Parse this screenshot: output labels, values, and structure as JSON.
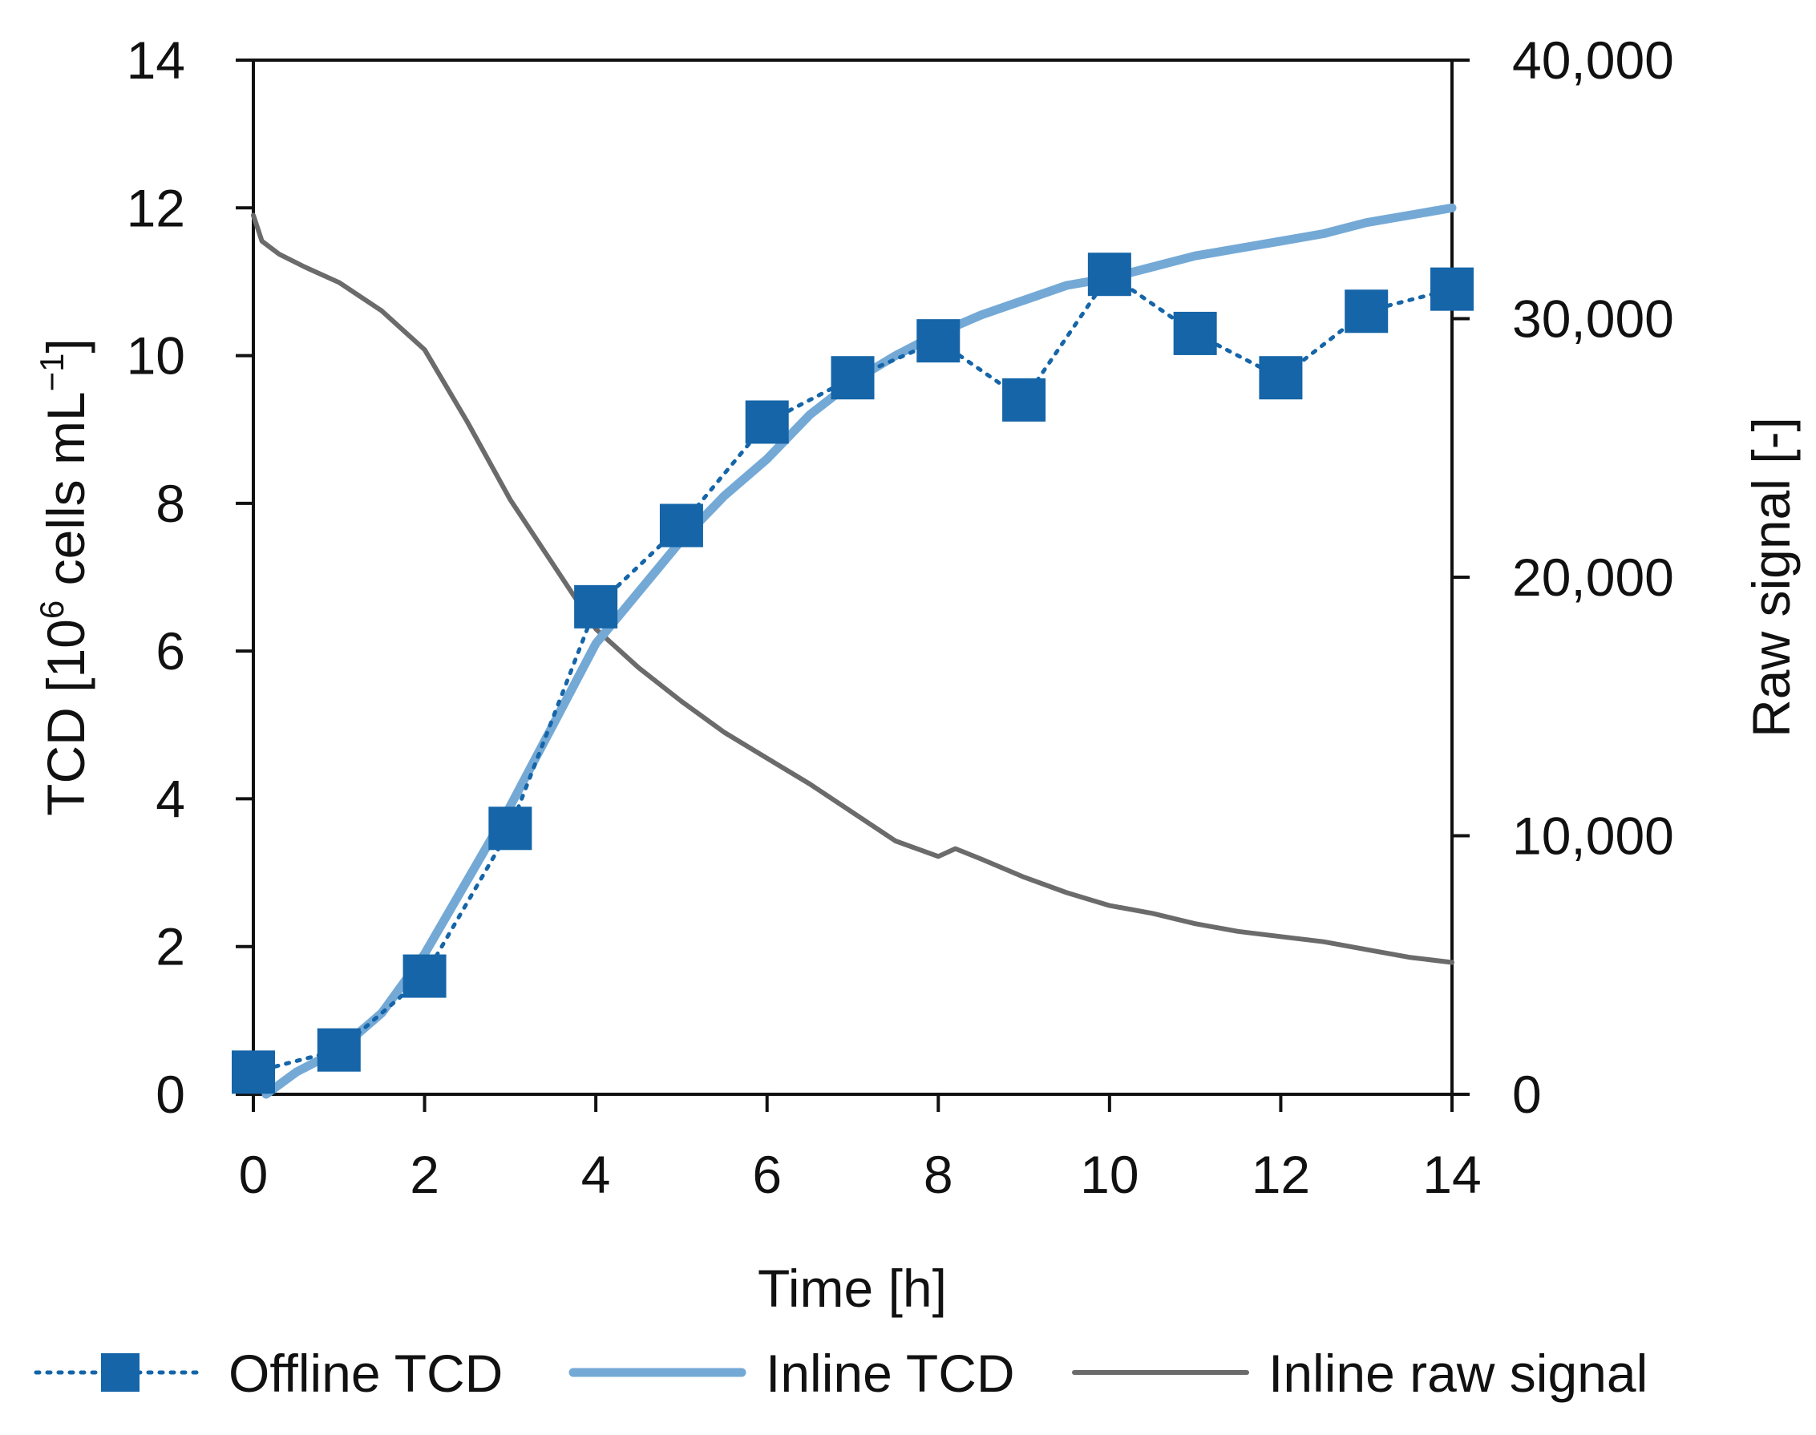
{
  "chart_data": {
    "type": "line",
    "title": "",
    "xlabel": "Time [h]",
    "ylabel_left": {
      "prefix": "TCD [10",
      "sup1": "6",
      "mid": " cells mL",
      "sup2": "−1",
      "suffix": "]"
    },
    "ylabel_right": "Raw signal [-]",
    "xlim": [
      0,
      14
    ],
    "ylim_left": [
      0,
      14
    ],
    "ylim_right": [
      0,
      40000
    ],
    "x_ticks": [
      "0",
      "2",
      "4",
      "6",
      "8",
      "10",
      "12",
      "14"
    ],
    "y_left_ticks": [
      "0",
      "2",
      "4",
      "6",
      "8",
      "10",
      "12",
      "14"
    ],
    "y_right_ticks": [
      "0",
      "10,000",
      "20,000",
      "30,000",
      "40,000"
    ],
    "legend_position": "bottom",
    "series": [
      {
        "name": "Offline TCD",
        "axis": "left",
        "style": "dotted-markers",
        "color": "#1565a8",
        "x": [
          0,
          1,
          2,
          3,
          4,
          5,
          6,
          7,
          8,
          9,
          10,
          11,
          12,
          13,
          14
        ],
        "y": [
          0.3,
          0.6,
          1.6,
          3.6,
          6.6,
          7.7,
          9.1,
          9.7,
          10.2,
          9.4,
          11.1,
          10.3,
          9.7,
          10.6,
          10.9
        ]
      },
      {
        "name": "Inline TCD",
        "axis": "left",
        "style": "solid",
        "color": "#74a9d6",
        "x": [
          0.15,
          0.5,
          1,
          1.5,
          2,
          2.5,
          3,
          3.5,
          4,
          4.5,
          5,
          5.5,
          6,
          6.5,
          7,
          7.5,
          8,
          8.5,
          9,
          9.5,
          10,
          10.5,
          11,
          11.5,
          12,
          12.5,
          13,
          13.5,
          14
        ],
        "y": [
          0.0,
          0.3,
          0.6,
          1.1,
          1.9,
          2.9,
          3.9,
          5.0,
          6.1,
          6.8,
          7.5,
          8.1,
          8.6,
          9.2,
          9.65,
          10.0,
          10.3,
          10.55,
          10.75,
          10.95,
          11.05,
          11.2,
          11.35,
          11.45,
          11.55,
          11.65,
          11.8,
          11.9,
          12.0
        ]
      },
      {
        "name": "Inline raw signal",
        "axis": "right",
        "style": "solid",
        "color": "#6b6b6b",
        "x": [
          0,
          0.1,
          0.3,
          0.6,
          1,
          1.5,
          2,
          2.5,
          3,
          3.5,
          4,
          4.5,
          5,
          5.5,
          6,
          6.5,
          7,
          7.5,
          8,
          8.2,
          8.5,
          9,
          9.5,
          10,
          10.5,
          11,
          11.5,
          12,
          12.5,
          13,
          13.5,
          14
        ],
        "y": [
          34000,
          33000,
          32500,
          32000,
          31400,
          30300,
          28800,
          26000,
          23000,
          20500,
          18000,
          16500,
          15200,
          14000,
          13000,
          12000,
          10900,
          9800,
          9200,
          9500,
          9100,
          8400,
          7800,
          7300,
          7000,
          6600,
          6300,
          6100,
          5900,
          5600,
          5300,
          5100
        ]
      }
    ]
  }
}
